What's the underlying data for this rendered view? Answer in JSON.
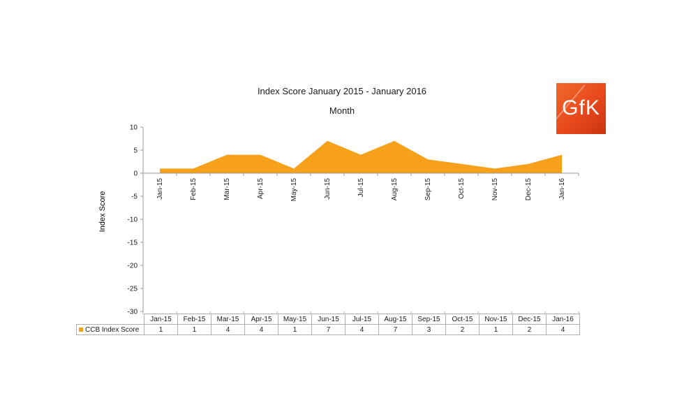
{
  "chart_data": {
    "type": "area",
    "title": "Index Score January 2015 - January 2016",
    "subtitle": "Month",
    "ylabel": "Index Score",
    "categories": [
      "Jan-15",
      "Feb-15",
      "Mar-15",
      "Apr-15",
      "May-15",
      "Jun-15",
      "Jul-15",
      "Aug-15",
      "Sep-15",
      "Oct-15",
      "Nov-15",
      "Dec-15",
      "Jan-16"
    ],
    "series": [
      {
        "name": "CCB Index Score",
        "values": [
          1,
          1,
          4,
          4,
          1,
          7,
          4,
          7,
          3,
          2,
          1,
          2,
          4
        ],
        "color": "#f7a11a"
      }
    ],
    "ylim": [
      -30,
      10
    ],
    "yticks": [
      10,
      5,
      0,
      -5,
      -10,
      -15,
      -20,
      -25,
      -30
    ],
    "grid": false,
    "data_table": true
  },
  "logo": {
    "text": "GfK",
    "color": "#e8491d"
  }
}
